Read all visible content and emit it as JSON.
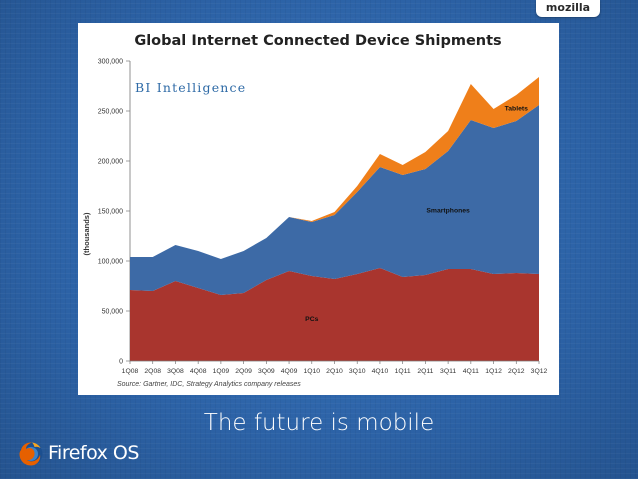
{
  "header": {
    "brand": "mozilla"
  },
  "chart_data": {
    "type": "area",
    "stacked": true,
    "title": "Global Internet Connected Device Shipments",
    "ylabel": "(thousands)",
    "xlabel": "",
    "watermark": "BI Intelligence",
    "source": "Source: Gartner, IDC, Strategy Analytics company releases",
    "ylim": [
      0,
      300000
    ],
    "yticks": [
      0,
      50000,
      100000,
      150000,
      200000,
      250000,
      300000
    ],
    "ytick_labels": [
      "0",
      "50,000",
      "100,000",
      "150,000",
      "200,000",
      "250,000",
      "300,000"
    ],
    "categories": [
      "1Q08",
      "2Q08",
      "3Q08",
      "4Q08",
      "1Q09",
      "2Q09",
      "3Q09",
      "4Q09",
      "1Q10",
      "2Q10",
      "3Q10",
      "4Q10",
      "1Q11",
      "2Q11",
      "3Q11",
      "4Q11",
      "1Q12",
      "2Q12",
      "3Q12"
    ],
    "series": [
      {
        "name": "PCs",
        "color": "#a9352e",
        "values": [
          71000,
          70000,
          80000,
          73000,
          66000,
          68000,
          81000,
          90000,
          85000,
          82000,
          87000,
          93000,
          84000,
          86000,
          92000,
          92000,
          87000,
          88000,
          87000
        ]
      },
      {
        "name": "Smartphones",
        "color": "#3d6aa6",
        "values": [
          33000,
          34000,
          36000,
          37000,
          36000,
          42000,
          42000,
          54000,
          54000,
          64000,
          82000,
          101000,
          102000,
          106000,
          118000,
          149000,
          146000,
          152000,
          169000
        ]
      },
      {
        "name": "Tablets",
        "color": "#ef7f1a",
        "values": [
          0,
          0,
          0,
          0,
          0,
          0,
          0,
          0,
          1000,
          3000,
          6000,
          13000,
          10000,
          17000,
          20000,
          36000,
          19000,
          26000,
          28000
        ]
      }
    ]
  },
  "slide": {
    "caption": "The future is mobile"
  },
  "footer": {
    "logo_text": "Firefox OS"
  }
}
